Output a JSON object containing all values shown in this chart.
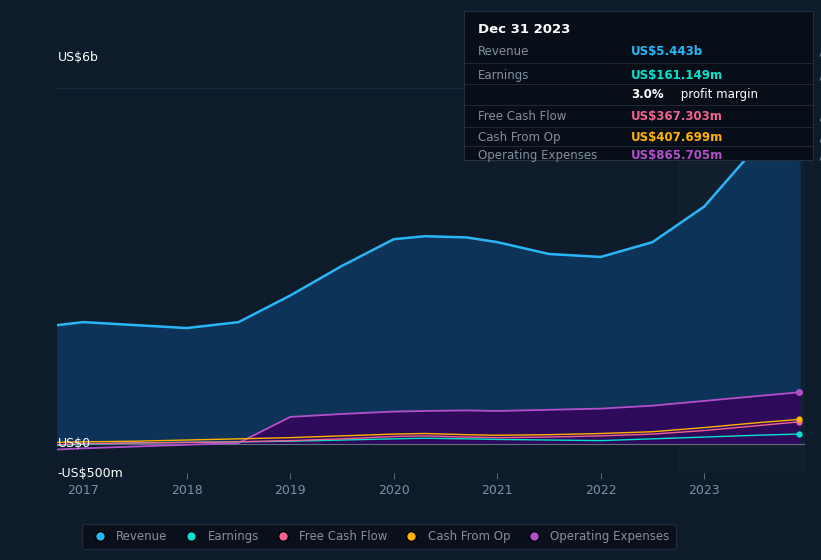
{
  "background_color": "#0d1b2a",
  "plot_bg_color": "#0d1b2a",
  "years": [
    2016.75,
    2017.0,
    2017.5,
    2018.0,
    2018.5,
    2019.0,
    2019.5,
    2020.0,
    2020.3,
    2020.7,
    2021.0,
    2021.5,
    2022.0,
    2022.5,
    2023.0,
    2023.5,
    2023.92
  ],
  "revenue": [
    2000,
    2050,
    2000,
    1950,
    2050,
    2500,
    3000,
    3450,
    3500,
    3480,
    3400,
    3200,
    3150,
    3400,
    4000,
    5000,
    5443
  ],
  "earnings": [
    -30,
    -10,
    10,
    20,
    30,
    40,
    60,
    80,
    90,
    80,
    70,
    60,
    50,
    80,
    110,
    140,
    161
  ],
  "free_cash_flow": [
    -20,
    0,
    10,
    20,
    30,
    50,
    80,
    120,
    130,
    110,
    100,
    110,
    130,
    160,
    220,
    300,
    367
  ],
  "cash_from_op": [
    20,
    30,
    40,
    60,
    80,
    100,
    130,
    160,
    170,
    150,
    140,
    150,
    170,
    200,
    270,
    350,
    408
  ],
  "operating_expenses": [
    -100,
    -80,
    -50,
    -20,
    10,
    450,
    500,
    540,
    550,
    560,
    550,
    570,
    590,
    640,
    720,
    800,
    866
  ],
  "ylim_min": -500,
  "ylim_max": 6400,
  "xticks": [
    2017,
    2018,
    2019,
    2020,
    2021,
    2022,
    2023
  ],
  "revenue_color": "#29b6f6",
  "revenue_fill_color": "#0d3358",
  "earnings_color": "#00e5cc",
  "free_cash_flow_color": "#f06292",
  "cash_from_op_color": "#ffb300",
  "operating_expenses_color": "#b44fcc",
  "operating_expenses_fill_color": "#2d0b5a",
  "grid_color": "#1a3040",
  "text_color": "#8090a0",
  "label_color": "#ffffff",
  "tooltip_bg": "#080e18",
  "tooltip_border": "#252f3f",
  "tooltip_title": "Dec 31 2023",
  "tooltip_revenue_label": "Revenue",
  "tooltip_revenue_value": "US$5.443b",
  "tooltip_earnings_label": "Earnings",
  "tooltip_earnings_value": "US$161.149m",
  "tooltip_margin_pct": "3.0%",
  "tooltip_margin_text": " profit margin",
  "tooltip_fcf_label": "Free Cash Flow",
  "tooltip_fcf_value": "US$367.303m",
  "tooltip_cashop_label": "Cash From Op",
  "tooltip_cashop_value": "US$407.699m",
  "tooltip_opex_label": "Operating Expenses",
  "tooltip_opex_value": "US$865.705m",
  "legend_items": [
    "Revenue",
    "Earnings",
    "Free Cash Flow",
    "Cash From Op",
    "Operating Expenses"
  ],
  "legend_colors": [
    "#29b6f6",
    "#00e5cc",
    "#f06292",
    "#ffb300",
    "#b44fcc"
  ],
  "highlight_start": 2022.75,
  "highlight_bg_color": "#121f2e"
}
